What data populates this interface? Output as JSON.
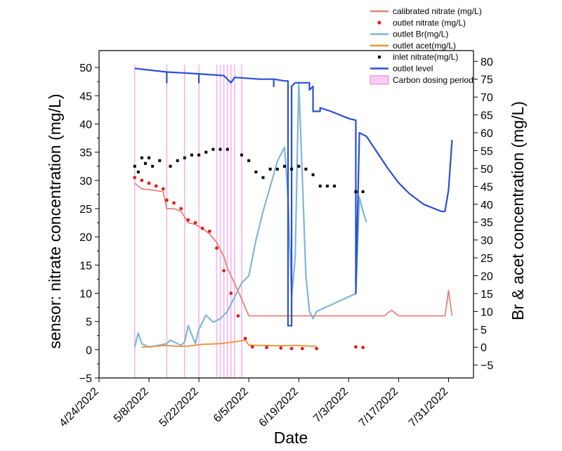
{
  "chart_data": {
    "type": "line",
    "xlabel": "Date",
    "ylabel_left": "sensor: nitrate concentration (mg/L)",
    "ylabel_right": "Br & acet concentration (mg/L)",
    "x_range": [
      "2022-04-24",
      "2022-08-07"
    ],
    "x_ticks": [
      "4/24/2022",
      "5/8/2022",
      "5/22/2022",
      "6/5/2022",
      "6/19/2022",
      "7/3/2022",
      "7/17/2022",
      "7/31/2022"
    ],
    "ylim_left": [
      -5,
      53
    ],
    "ylim_right": [
      -8.6,
      83
    ],
    "yticks_left": [
      "−5",
      "0",
      "5",
      "10",
      "15",
      "20",
      "25",
      "30",
      "35",
      "40",
      "45",
      "50"
    ],
    "yticks_right": [
      "−5",
      "0",
      "5",
      "10",
      "15",
      "20",
      "25",
      "30",
      "35",
      "40",
      "45",
      "50",
      "55",
      "60",
      "65",
      "70",
      "75",
      "80"
    ],
    "legend_position": "top-right",
    "legend": [
      {
        "label": "calibrated nitrate (mg/L)",
        "kind": "line",
        "color": "#e8837b"
      },
      {
        "label": "outlet nitrate (mg/L)",
        "kind": "dot",
        "color": "#e0201b"
      },
      {
        "label": "outlet Br(mg/L)",
        "kind": "line",
        "color": "#7fb6dc"
      },
      {
        "label": "outlet acet(mg/L)",
        "kind": "line",
        "color": "#f0903a"
      },
      {
        "label": "inlet nitrate(mg/L)",
        "kind": "square",
        "color": "#000000"
      },
      {
        "label": "outlet level",
        "kind": "line",
        "color": "#2a4fd4"
      },
      {
        "label": "Carbon dosing period",
        "kind": "band",
        "color": "#f9cdf3"
      }
    ],
    "carbon_dosing_dates": [
      "2022-05-04",
      "2022-05-13",
      "2022-05-18",
      "2022-05-22",
      "2022-05-27",
      "2022-05-28",
      "2022-05-29",
      "2022-05-30",
      "2022-05-31",
      "2022-06-01",
      "2022-06-03"
    ],
    "series": [
      {
        "name": "calibrated nitrate (mg/L)",
        "axis": "left",
        "color": "#e8837b",
        "kind": "line",
        "points": [
          [
            "2022-05-04",
            29.5
          ],
          [
            "2022-05-06",
            28.5
          ],
          [
            "2022-05-09",
            28.3
          ],
          [
            "2022-05-12",
            28
          ],
          [
            "2022-05-13",
            25
          ],
          [
            "2022-05-15",
            25
          ],
          [
            "2022-05-17",
            24.5
          ],
          [
            "2022-05-19",
            22.5
          ],
          [
            "2022-05-21",
            22.2
          ],
          [
            "2022-05-23",
            21.5
          ],
          [
            "2022-05-25",
            20.5
          ],
          [
            "2022-05-27",
            19
          ],
          [
            "2022-05-29",
            16.5
          ],
          [
            "2022-05-30",
            14.5
          ],
          [
            "2022-06-03",
            9
          ],
          [
            "2022-06-05",
            6
          ],
          [
            "2022-06-30",
            6
          ],
          [
            "2022-07-05",
            6
          ],
          [
            "2022-07-13",
            6
          ],
          [
            "2022-07-15",
            7
          ],
          [
            "2022-07-17",
            6
          ],
          [
            "2022-07-30",
            6
          ],
          [
            "2022-07-31",
            10.5
          ],
          [
            "2022-08-01",
            6
          ]
        ]
      },
      {
        "name": "outlet nitrate (mg/L)",
        "axis": "left",
        "color": "#e0201b",
        "kind": "dot",
        "points": [
          [
            "2022-05-04",
            30.5
          ],
          [
            "2022-05-06",
            30
          ],
          [
            "2022-05-08",
            29.5
          ],
          [
            "2022-05-10",
            29
          ],
          [
            "2022-05-12",
            28.5
          ],
          [
            "2022-05-13",
            26.5
          ],
          [
            "2022-05-15",
            26
          ],
          [
            "2022-05-17",
            25
          ],
          [
            "2022-05-19",
            23
          ],
          [
            "2022-05-21",
            22.5
          ],
          [
            "2022-05-23",
            21.5
          ],
          [
            "2022-05-25",
            21
          ],
          [
            "2022-05-27",
            18
          ],
          [
            "2022-05-29",
            14
          ],
          [
            "2022-05-31",
            10
          ],
          [
            "2022-06-02",
            6
          ],
          [
            "2022-06-04",
            2
          ],
          [
            "2022-06-06",
            0.5
          ],
          [
            "2022-06-10",
            0.4
          ],
          [
            "2022-06-14",
            0.3
          ],
          [
            "2022-06-17",
            0.2
          ],
          [
            "2022-06-20",
            0.2
          ],
          [
            "2022-06-24",
            0.2
          ],
          [
            "2022-07-05",
            0.5
          ],
          [
            "2022-07-07",
            0.4
          ]
        ]
      },
      {
        "name": "outlet Br(mg/L)",
        "axis": "right",
        "color": "#7fb6dc",
        "kind": "line",
        "points": [
          [
            "2022-05-04",
            0
          ],
          [
            "2022-05-05",
            4
          ],
          [
            "2022-05-06",
            1
          ],
          [
            "2022-05-08",
            0
          ],
          [
            "2022-05-13",
            1
          ],
          [
            "2022-05-14",
            2
          ],
          [
            "2022-05-17",
            0.5
          ],
          [
            "2022-05-18",
            1.5
          ],
          [
            "2022-05-19",
            6
          ],
          [
            "2022-05-21",
            1
          ],
          [
            "2022-05-22",
            5
          ],
          [
            "2022-05-24",
            9
          ],
          [
            "2022-05-26",
            7
          ],
          [
            "2022-05-28",
            8
          ],
          [
            "2022-05-30",
            10
          ],
          [
            "2022-06-01",
            14
          ],
          [
            "2022-06-03",
            18
          ],
          [
            "2022-06-05",
            20
          ],
          [
            "2022-06-07",
            30
          ],
          [
            "2022-06-09",
            38
          ],
          [
            "2022-06-11",
            45
          ],
          [
            "2022-06-13",
            52
          ],
          [
            "2022-06-15",
            56
          ],
          [
            "2022-06-16",
            42
          ],
          [
            "2022-06-17",
            14
          ],
          [
            "2022-06-18",
            25
          ],
          [
            "2022-06-19",
            74
          ],
          [
            "2022-06-20",
            48
          ],
          [
            "2022-06-21",
            20
          ],
          [
            "2022-06-22",
            10
          ],
          [
            "2022-06-23",
            8
          ],
          [
            "2022-06-24",
            10
          ],
          [
            "2022-07-05",
            15
          ],
          [
            "2022-07-06",
            42
          ],
          [
            "2022-07-07",
            38
          ],
          [
            "2022-07-08",
            35
          ]
        ]
      },
      {
        "name": "outlet acet(mg/L)",
        "axis": "right",
        "color": "#f0903a",
        "kind": "line",
        "points": [
          [
            "2022-05-06",
            0
          ],
          [
            "2022-05-13",
            0.5
          ],
          [
            "2022-05-16",
            0.2
          ],
          [
            "2022-05-19",
            0.3
          ],
          [
            "2022-05-23",
            0.8
          ],
          [
            "2022-05-28",
            1
          ],
          [
            "2022-06-01",
            1.5
          ],
          [
            "2022-06-04",
            2
          ],
          [
            "2022-06-05",
            0.6
          ],
          [
            "2022-06-08",
            0.5
          ],
          [
            "2022-06-13",
            0.4
          ],
          [
            "2022-06-18",
            0.5
          ],
          [
            "2022-06-22",
            0.3
          ],
          [
            "2022-06-24",
            0.3
          ]
        ]
      },
      {
        "name": "inlet nitrate(mg/L)",
        "axis": "left",
        "color": "#000000",
        "kind": "square",
        "points": [
          [
            "2022-05-04",
            32.5
          ],
          [
            "2022-05-05",
            31.5
          ],
          [
            "2022-05-06",
            34
          ],
          [
            "2022-05-07",
            33
          ],
          [
            "2022-05-08",
            34
          ],
          [
            "2022-05-09",
            32.5
          ],
          [
            "2022-05-11",
            33.5
          ],
          [
            "2022-05-14",
            32.5
          ],
          [
            "2022-05-16",
            33.5
          ],
          [
            "2022-05-18",
            34
          ],
          [
            "2022-05-20",
            34.5
          ],
          [
            "2022-05-22",
            34.5
          ],
          [
            "2022-05-24",
            35
          ],
          [
            "2022-05-26",
            35.5
          ],
          [
            "2022-05-28",
            35.5
          ],
          [
            "2022-05-30",
            35.5
          ],
          [
            "2022-06-03",
            34.5
          ],
          [
            "2022-06-05",
            33.5
          ],
          [
            "2022-06-07",
            31.5
          ],
          [
            "2022-06-09",
            30.5
          ],
          [
            "2022-06-11",
            32
          ],
          [
            "2022-06-13",
            32
          ],
          [
            "2022-06-15",
            32.5
          ],
          [
            "2022-06-17",
            32
          ],
          [
            "2022-06-19",
            32.5
          ],
          [
            "2022-06-21",
            32
          ],
          [
            "2022-06-23",
            31
          ],
          [
            "2022-06-25",
            29
          ],
          [
            "2022-06-27",
            29
          ],
          [
            "2022-06-29",
            29
          ],
          [
            "2022-07-05",
            28
          ],
          [
            "2022-07-07",
            28
          ]
        ]
      },
      {
        "name": "outlet level",
        "axis": "right",
        "color": "#2a4fd4",
        "kind": "line",
        "points": [
          [
            "2022-05-04",
            78
          ],
          [
            "2022-05-13",
            77
          ],
          [
            "2022-05-13",
            74
          ],
          [
            "2022-05-13",
            77
          ],
          [
            "2022-05-22",
            76.5
          ],
          [
            "2022-05-22",
            74
          ],
          [
            "2022-05-22",
            76.5
          ],
          [
            "2022-05-29",
            76
          ],
          [
            "2022-05-31",
            74
          ],
          [
            "2022-06-01",
            75.5
          ],
          [
            "2022-06-08",
            75
          ],
          [
            "2022-06-12",
            75
          ],
          [
            "2022-06-12",
            73
          ],
          [
            "2022-06-12",
            75
          ],
          [
            "2022-06-15",
            74.5
          ],
          [
            "2022-06-16",
            74.5
          ],
          [
            "2022-06-16",
            6
          ],
          [
            "2022-06-17",
            6
          ],
          [
            "2022-06-17",
            73
          ],
          [
            "2022-06-18",
            74
          ],
          [
            "2022-06-22",
            74
          ],
          [
            "2022-06-22",
            72
          ],
          [
            "2022-06-23",
            73
          ],
          [
            "2022-06-23",
            66
          ],
          [
            "2022-06-25",
            66
          ],
          [
            "2022-06-25",
            67
          ],
          [
            "2022-06-28",
            66
          ],
          [
            "2022-07-03",
            64
          ],
          [
            "2022-07-05",
            63.5
          ],
          [
            "2022-07-05",
            15
          ],
          [
            "2022-07-06",
            60
          ],
          [
            "2022-07-08",
            59
          ],
          [
            "2022-07-10",
            56
          ],
          [
            "2022-07-12",
            53
          ],
          [
            "2022-07-14",
            50
          ],
          [
            "2022-07-17",
            46
          ],
          [
            "2022-07-20",
            43
          ],
          [
            "2022-07-24",
            40
          ],
          [
            "2022-07-29",
            38
          ],
          [
            "2022-07-30",
            38
          ],
          [
            "2022-07-31",
            44
          ],
          [
            "2022-08-01",
            58
          ]
        ]
      }
    ]
  }
}
